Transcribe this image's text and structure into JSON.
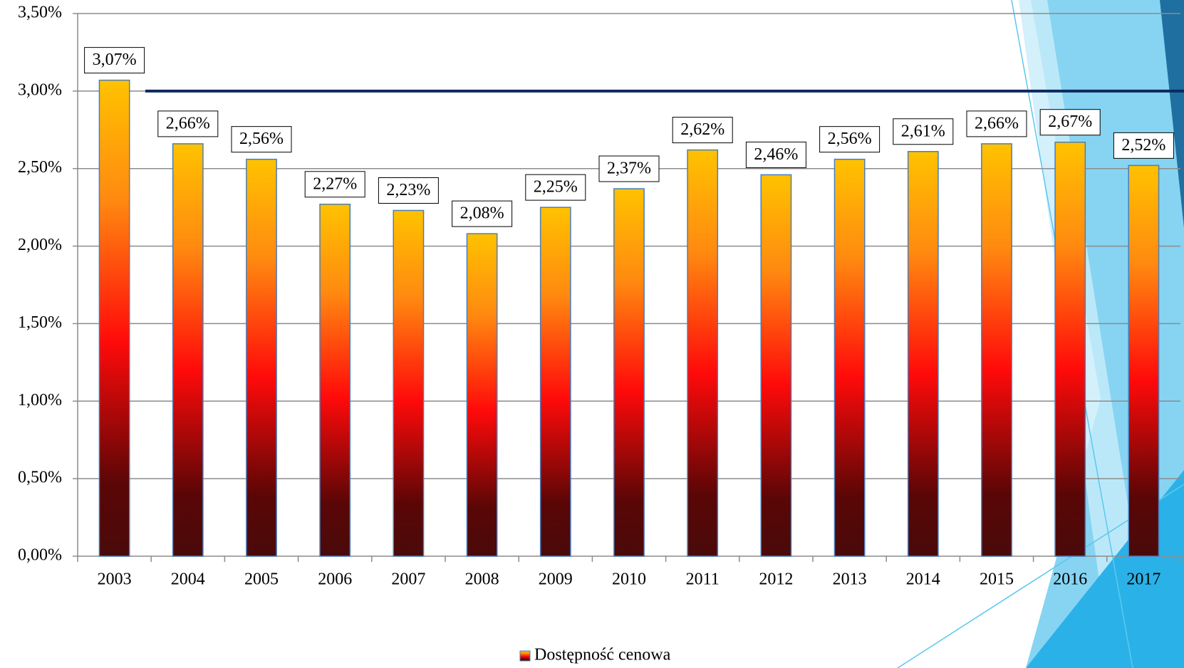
{
  "chart_data": {
    "type": "bar",
    "categories": [
      "2003",
      "2004",
      "2005",
      "2006",
      "2007",
      "2008",
      "2009",
      "2010",
      "2011",
      "2012",
      "2013",
      "2014",
      "2015",
      "2016",
      "2017"
    ],
    "series": [
      {
        "name": "Dostępność cenowa",
        "values": [
          3.07,
          2.66,
          2.56,
          2.27,
          2.23,
          2.08,
          2.25,
          2.37,
          2.62,
          2.46,
          2.56,
          2.61,
          2.66,
          2.67,
          2.52
        ],
        "value_labels": [
          "3,07%",
          "2,66%",
          "2,56%",
          "2,27%",
          "2,23%",
          "2,08%",
          "2,25%",
          "2,37%",
          "2,62%",
          "2,46%",
          "2,56%",
          "2,61%",
          "2,66%",
          "2,67%",
          "2,52%"
        ]
      }
    ],
    "ylim": [
      0,
      3.5
    ],
    "yticks": [
      {
        "value": 0,
        "label": "0,00%"
      },
      {
        "value": 0.5,
        "label": "0,50%"
      },
      {
        "value": 1,
        "label": "1,00%"
      },
      {
        "value": 1.5,
        "label": "1,50%"
      },
      {
        "value": 2,
        "label": "2,00%"
      },
      {
        "value": 2.5,
        "label": "2,50%"
      },
      {
        "value": 3,
        "label": "3,00%"
      },
      {
        "value": 3.5,
        "label": "3,50%"
      }
    ],
    "reference_line": {
      "value": 3,
      "color": "#0d2a5e"
    },
    "grid": true,
    "legend": "bottom"
  }
}
